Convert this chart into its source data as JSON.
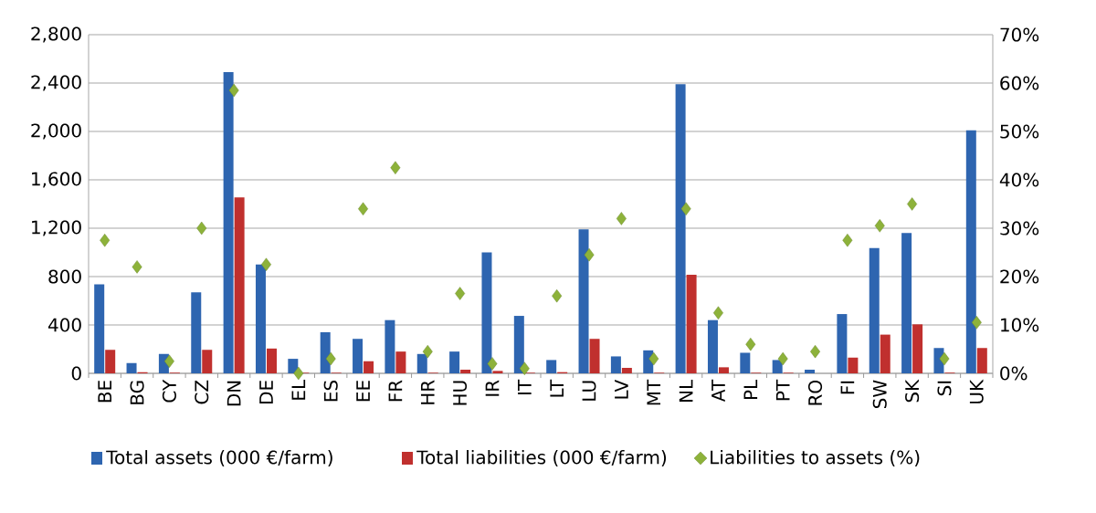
{
  "chart_data": {
    "type": "bar",
    "categories": [
      "BE",
      "BG",
      "CY",
      "CZ",
      "DN",
      "DE",
      "EL",
      "ES",
      "EE",
      "FR",
      "HR",
      "HU",
      "IR",
      "IT",
      "LT",
      "LU",
      "LV",
      "MT",
      "NL",
      "AT",
      "PL",
      "PT",
      "RO",
      "FI",
      "SW",
      "SK",
      "SI",
      "UK"
    ],
    "series": [
      {
        "name": "Total assets (000 €/farm)",
        "color": "#2e65b0",
        "values": [
          735,
          85,
          160,
          670,
          2490,
          900,
          120,
          340,
          285,
          440,
          160,
          180,
          1000,
          475,
          110,
          1190,
          140,
          190,
          2390,
          440,
          170,
          110,
          30,
          490,
          1035,
          1160,
          210,
          2010
        ]
      },
      {
        "name": "Total liabilities (000 €/farm)",
        "color": "#c0302e",
        "values": [
          195,
          10,
          5,
          195,
          1455,
          205,
          5,
          5,
          100,
          180,
          5,
          30,
          20,
          5,
          10,
          285,
          45,
          5,
          815,
          50,
          5,
          5,
          0,
          130,
          320,
          405,
          5,
          210
        ]
      },
      {
        "name": "Liabilities to assets (%)",
        "color": "#8db23a",
        "type": "scatter",
        "axis": "y2",
        "marker": "diamond",
        "values": [
          27.5,
          22,
          2.5,
          30,
          58.5,
          22.5,
          0,
          3,
          34,
          42.5,
          4.5,
          16.5,
          2,
          1,
          16,
          24.5,
          32,
          3,
          34,
          12.5,
          6,
          3,
          4.5,
          27.5,
          30.5,
          35,
          3,
          10.5
        ]
      }
    ],
    "ylim": [
      0,
      2800
    ],
    "yticks": [
      0,
      400,
      800,
      {
        "value": 1200,
        "label": "1,200"
      },
      {
        "value": 1600,
        "label": "1,600"
      },
      {
        "value": 2000,
        "label": "2,000"
      },
      {
        "value": 2400,
        "label": "2,400"
      },
      {
        "value": 2800,
        "label": "2,800"
      }
    ],
    "y2lim": [
      0,
      70
    ],
    "y2ticks": [
      {
        "value": 0,
        "label": "0%"
      },
      {
        "value": 10,
        "label": "10%"
      },
      {
        "value": 20,
        "label": "20%"
      },
      {
        "value": 30,
        "label": "30%"
      },
      {
        "value": 40,
        "label": "40%"
      },
      {
        "value": 50,
        "label": "50%"
      },
      {
        "value": 60,
        "label": "60%"
      },
      {
        "value": 70,
        "label": "70%"
      }
    ],
    "grid": "y",
    "legend": "bottom"
  }
}
